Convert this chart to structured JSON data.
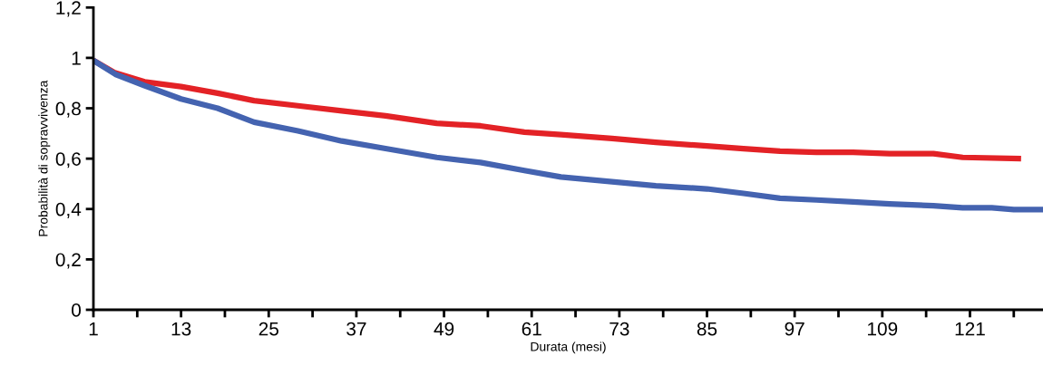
{
  "chart_data": {
    "type": "line",
    "xlabel": "Durata (mesi)",
    "ylabel": "Probabilità di sopravvivenza",
    "xlim": [
      1,
      131
    ],
    "ylim": [
      0,
      1.2
    ],
    "xticks": [
      1,
      {
        "value": 7,
        "label": null
      },
      13,
      {
        "value": 19,
        "label": null
      },
      25,
      {
        "value": 31,
        "label": null
      },
      37,
      {
        "value": 43,
        "label": null
      },
      49,
      {
        "value": 55,
        "label": null
      },
      61,
      {
        "value": 67,
        "label": null
      },
      73,
      {
        "value": 79,
        "label": null
      },
      85,
      {
        "value": 91,
        "label": null
      },
      97,
      {
        "value": 103,
        "label": null
      },
      109,
      {
        "value": 115,
        "label": null
      },
      121,
      {
        "value": 127,
        "label": null
      }
    ],
    "yticks": [
      0,
      {
        "value": 0.2,
        "label": "0,2"
      },
      {
        "value": 0.4,
        "label": "0,4"
      },
      {
        "value": 0.6,
        "label": "0,6"
      },
      {
        "value": 0.8,
        "label": "0,8"
      },
      1,
      {
        "value": 1.2,
        "label": "1,2"
      }
    ],
    "grid": false,
    "legend": false,
    "marker": "none",
    "line_style": "solid",
    "series": [
      {
        "color": "#e32226",
        "x": [
          1,
          4,
          8,
          13,
          18,
          23,
          29,
          35,
          41,
          48,
          54,
          60,
          65,
          72,
          78,
          85,
          90,
          95,
          100,
          105,
          110,
          116,
          120,
          128
        ],
        "values": [
          0.99,
          0.94,
          0.905,
          0.886,
          0.86,
          0.83,
          0.81,
          0.79,
          0.77,
          0.74,
          0.73,
          0.705,
          0.695,
          0.68,
          0.665,
          0.65,
          0.64,
          0.63,
          0.625,
          0.625,
          0.62,
          0.62,
          0.605,
          0.6
        ]
      },
      {
        "color": "#4463b0",
        "x": [
          1,
          4,
          8,
          13,
          18,
          23,
          29,
          35,
          41,
          48,
          54,
          60,
          65,
          72,
          78,
          85,
          90,
          95,
          100,
          105,
          110,
          116,
          120,
          124,
          127,
          131
        ],
        "values": [
          0.99,
          0.935,
          0.89,
          0.837,
          0.8,
          0.745,
          0.71,
          0.67,
          0.64,
          0.605,
          0.585,
          0.553,
          0.527,
          0.508,
          0.492,
          0.48,
          0.462,
          0.443,
          0.436,
          0.428,
          0.42,
          0.413,
          0.405,
          0.405,
          0.398,
          0.398
        ]
      }
    ]
  }
}
